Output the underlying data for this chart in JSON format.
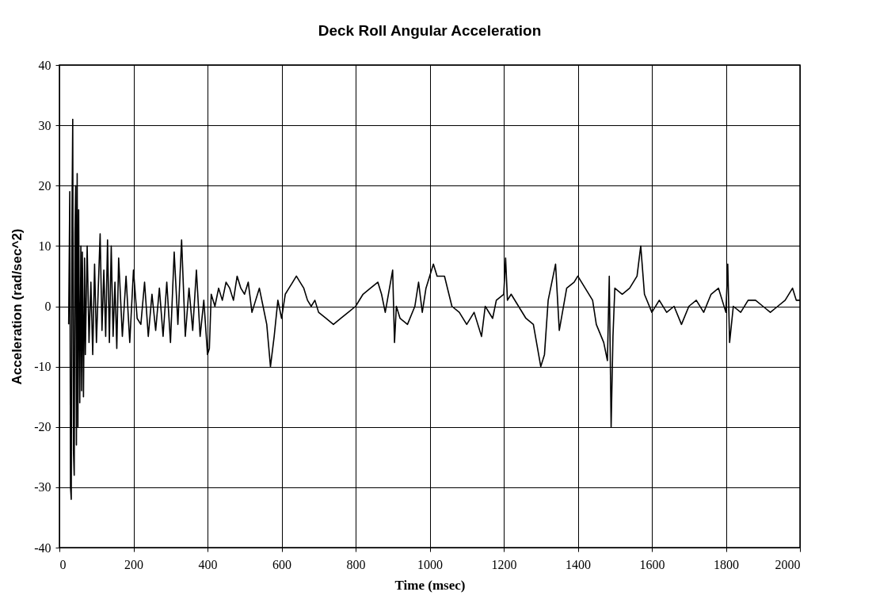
{
  "chart_data": {
    "type": "line",
    "title": "Deck Roll Angular Acceleration",
    "xlabel": "Time (msec)",
    "ylabel": "Acceleration (rad/sec^2)",
    "xlim": [
      0,
      2000
    ],
    "xticks": [
      0,
      200,
      400,
      600,
      800,
      1000,
      1200,
      1400,
      1600,
      1800,
      2000
    ],
    "ylim": [
      -40,
      40
    ],
    "yticks": [
      -40,
      -30,
      -20,
      -10,
      0,
      10,
      20,
      30,
      40
    ],
    "grid": true,
    "legend": false,
    "marker": "none",
    "line_style": "solid",
    "series": [
      {
        "color": "#000000",
        "x": [
          25,
          28,
          30,
          32,
          34,
          36,
          38,
          40,
          42,
          44,
          46,
          48,
          50,
          52,
          55,
          58,
          60,
          62,
          65,
          68,
          70,
          75,
          80,
          85,
          90,
          95,
          100,
          105,
          110,
          115,
          120,
          125,
          130,
          135,
          140,
          145,
          150,
          155,
          160,
          170,
          180,
          190,
          200,
          210,
          220,
          230,
          240,
          250,
          260,
          270,
          280,
          290,
          300,
          310,
          320,
          330,
          340,
          350,
          360,
          370,
          380,
          390,
          400,
          405,
          410,
          420,
          430,
          440,
          450,
          460,
          470,
          480,
          490,
          500,
          510,
          520,
          530,
          540,
          550,
          560,
          570,
          580,
          590,
          600,
          610,
          620,
          630,
          640,
          650,
          660,
          670,
          680,
          690,
          700,
          720,
          740,
          760,
          780,
          800,
          820,
          840,
          860,
          870,
          880,
          900,
          905,
          910,
          920,
          940,
          960,
          970,
          980,
          990,
          1000,
          1010,
          1020,
          1040,
          1060,
          1080,
          1100,
          1120,
          1140,
          1150,
          1170,
          1180,
          1200,
          1205,
          1210,
          1220,
          1240,
          1260,
          1280,
          1300,
          1310,
          1320,
          1340,
          1350,
          1370,
          1390,
          1400,
          1420,
          1440,
          1450,
          1470,
          1480,
          1485,
          1490,
          1495,
          1500,
          1520,
          1540,
          1560,
          1570,
          1580,
          1600,
          1620,
          1640,
          1660,
          1680,
          1700,
          1720,
          1740,
          1760,
          1780,
          1800,
          1805,
          1810,
          1820,
          1840,
          1860,
          1880,
          1900,
          1920,
          1940,
          1960,
          1980,
          1990,
          2000
        ],
        "values": [
          -3,
          19,
          -30,
          -32,
          15,
          31,
          -24,
          -28,
          12,
          20,
          -23,
          22,
          -20,
          16,
          -16,
          10,
          -14,
          9,
          -15,
          8,
          -8,
          10,
          -6,
          4,
          -8,
          7,
          -6,
          3,
          12,
          -4,
          6,
          -5,
          11,
          -6,
          10,
          -5,
          4,
          -7,
          8,
          -5,
          5,
          -6,
          6,
          -2,
          -3,
          4,
          -5,
          2,
          -4,
          3,
          -5,
          4,
          -6,
          9,
          -3,
          11,
          -5,
          3,
          -4,
          6,
          -5,
          1,
          -8,
          -7,
          2,
          0,
          3,
          1,
          4,
          3,
          1,
          5,
          3,
          2,
          4,
          -1,
          1,
          3,
          0,
          -3,
          -10,
          -5,
          1,
          -2,
          2,
          3,
          4,
          5,
          4,
          3,
          1,
          0,
          1,
          -1,
          -2,
          -3,
          -2,
          -1,
          0,
          2,
          3,
          4,
          2,
          -1,
          6,
          -6,
          0,
          -2,
          -3,
          0,
          4,
          -1,
          3,
          5,
          7,
          5,
          5,
          0,
          -1,
          -3,
          -1,
          -5,
          0,
          -2,
          1,
          2,
          8,
          1,
          2,
          0,
          -2,
          -3,
          -10,
          -8,
          1,
          7,
          -4,
          3,
          4,
          5,
          3,
          1,
          -3,
          -6,
          -9,
          5,
          -20,
          -5,
          3,
          2,
          3,
          5,
          10,
          2,
          -1,
          1,
          -1,
          0,
          -3,
          0,
          1,
          -1,
          2,
          3,
          -1,
          7,
          -6,
          0,
          -1,
          1,
          1,
          0,
          -1,
          0,
          1,
          3,
          1,
          1
        ]
      }
    ]
  }
}
